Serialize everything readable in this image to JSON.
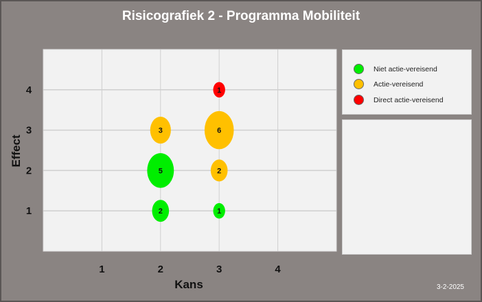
{
  "chart_data": {
    "type": "bubble",
    "title": "Risicografiek 2 - Programma Mobiliteit",
    "xlabel": "Kans",
    "ylabel": "Effect",
    "xlim": [
      0,
      5
    ],
    "ylim": [
      0,
      5
    ],
    "xticks": [
      1,
      2,
      3,
      4
    ],
    "yticks": [
      1,
      2,
      3,
      4
    ],
    "grid": true,
    "legend_position": "right",
    "series": [
      {
        "name": "Niet actie-vereisend",
        "color": "#00ee00",
        "points": [
          {
            "x": 2,
            "y": 1,
            "size": 2
          },
          {
            "x": 3,
            "y": 1,
            "size": 1
          },
          {
            "x": 2,
            "y": 2,
            "size": 5
          }
        ]
      },
      {
        "name": "Actie-vereisend",
        "color": "#ffc000",
        "points": [
          {
            "x": 3,
            "y": 2,
            "size": 2
          },
          {
            "x": 2,
            "y": 3,
            "size": 3
          },
          {
            "x": 3,
            "y": 3,
            "size": 6
          }
        ]
      },
      {
        "name": "Direct actie-vereisend",
        "color": "#ff0000",
        "points": [
          {
            "x": 3,
            "y": 4,
            "size": 1
          }
        ]
      }
    ]
  },
  "footer": {
    "date": "3-2-2025"
  }
}
